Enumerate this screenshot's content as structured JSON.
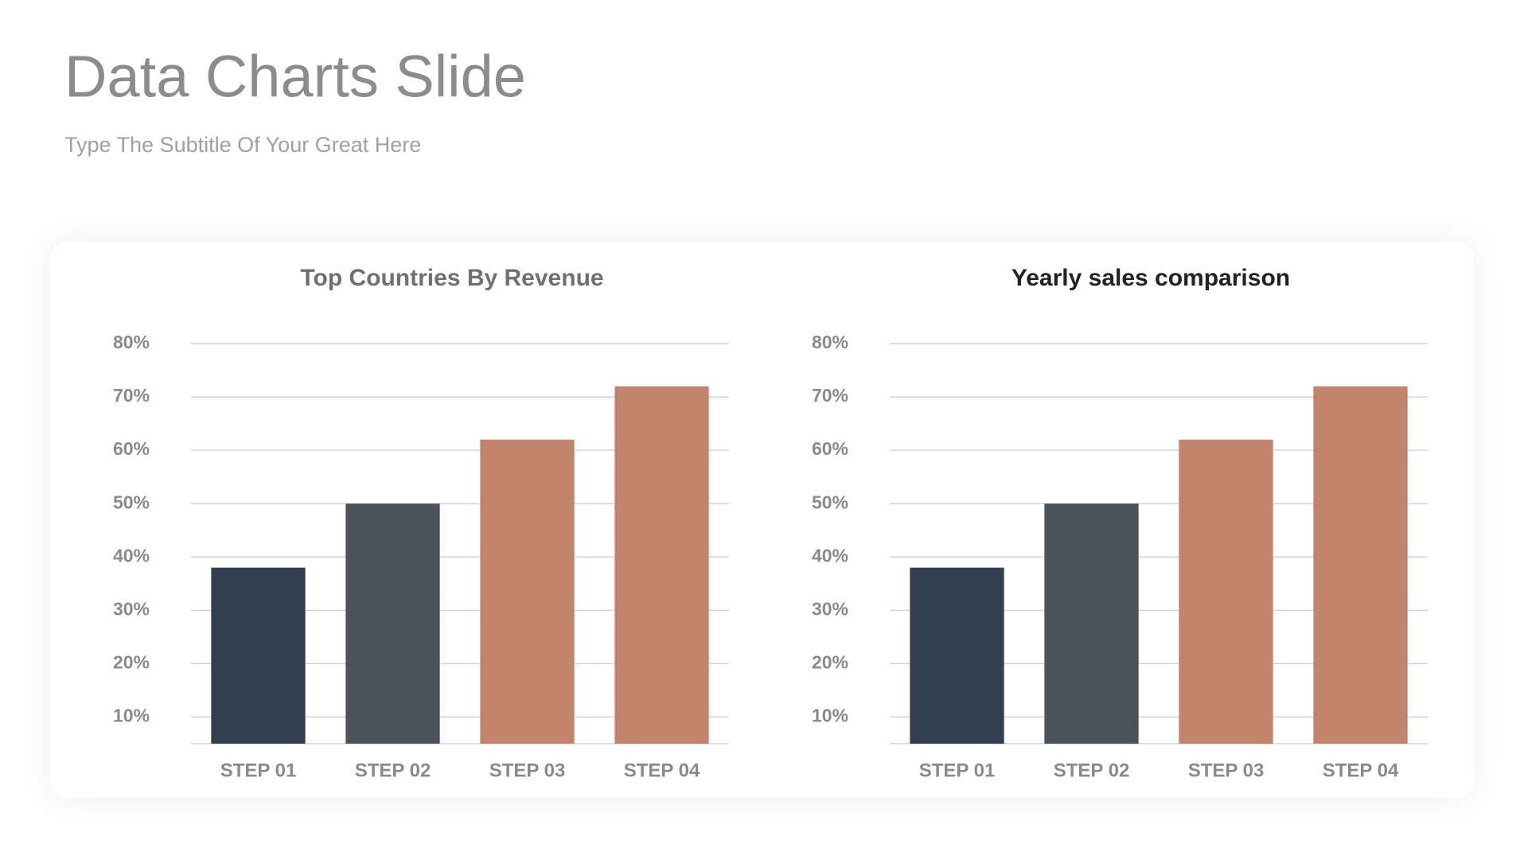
{
  "title": "Data Charts Slide",
  "subtitle": "Type The Subtitle Of Your Great Here",
  "chart_data": [
    {
      "type": "bar",
      "title": "Top Countries By Revenue",
      "title_color": "#707070",
      "categories": [
        "STEP 01",
        "STEP 02",
        "STEP 03",
        "STEP 04"
      ],
      "values": [
        38,
        50,
        62,
        72
      ],
      "colors": [
        "#323f50",
        "#4a535c",
        "#c2846c",
        "#c2846c"
      ],
      "ylim": [
        5,
        80
      ],
      "yticks": [
        {
          "value": 10,
          "label": "10%"
        },
        {
          "value": 20,
          "label": "20%"
        },
        {
          "value": 30,
          "label": "30%"
        },
        {
          "value": 40,
          "label": "40%"
        },
        {
          "value": 50,
          "label": "50%"
        },
        {
          "value": 60,
          "label": "60%"
        },
        {
          "value": 70,
          "label": "70%"
        },
        {
          "value": 80,
          "label": "80%"
        }
      ],
      "grid": true
    },
    {
      "type": "bar",
      "title": "Yearly sales comparison",
      "title_color": "#222222",
      "categories": [
        "STEP 01",
        "STEP 02",
        "STEP 03",
        "STEP 04"
      ],
      "values": [
        38,
        50,
        62,
        72
      ],
      "colors": [
        "#323f50",
        "#4a535c",
        "#c2846c",
        "#c2846c"
      ],
      "ylim": [
        5,
        80
      ],
      "yticks": [
        {
          "value": 10,
          "label": "10%"
        },
        {
          "value": 20,
          "label": "20%"
        },
        {
          "value": 30,
          "label": "30%"
        },
        {
          "value": 40,
          "label": "40%"
        },
        {
          "value": 50,
          "label": "50%"
        },
        {
          "value": 60,
          "label": "60%"
        },
        {
          "value": 70,
          "label": "70%"
        },
        {
          "value": 80,
          "label": "80%"
        }
      ],
      "grid": true
    }
  ]
}
